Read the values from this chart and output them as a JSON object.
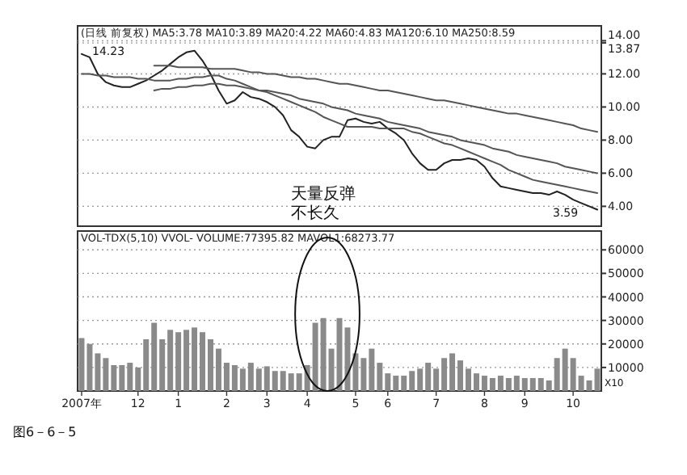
{
  "chart_data": [
    {
      "type": "line",
      "title": "(日线 前复权) MA5:3.78 MA10:3.89 MA20:4.22 MA60:4.83 MA120:6.10 MA250:8.59",
      "categories": [
        null,
        null,
        null,
        null,
        null,
        null,
        null,
        null,
        null,
        null,
        null,
        null,
        null,
        null,
        null,
        null,
        null,
        null,
        null,
        null,
        null,
        null,
        null,
        null,
        null,
        null,
        null,
        null,
        null,
        null,
        null,
        null,
        null,
        null,
        null,
        null,
        null,
        null,
        null,
        null,
        null,
        null,
        null,
        null,
        null,
        null,
        null,
        null,
        null,
        null,
        null,
        null,
        null,
        null,
        null,
        null,
        null,
        null,
        null,
        null,
        null,
        null,
        null,
        null,
        null
      ],
      "ylim": [
        2.8,
        14.9
      ],
      "yticks": [
        {
          "value": 4,
          "label": "4.00"
        },
        {
          "value": 6,
          "label": "6.00"
        },
        {
          "value": 8,
          "label": "8.00"
        },
        {
          "value": 10,
          "label": "10.00"
        },
        {
          "value": 12,
          "label": "12.00"
        },
        {
          "value": 13.87,
          "label": "13.87"
        },
        {
          "value": 14,
          "label": "14.00"
        }
      ],
      "grid": "y",
      "tick_labels": "y",
      "series": [
        {
          "color": "#222222",
          "values": [
            13.2,
            13.0,
            12.0,
            11.5,
            11.3,
            11.2,
            11.2,
            11.4,
            11.6,
            11.9,
            12.2,
            12.6,
            13.0,
            13.3,
            13.4,
            12.8,
            12.0,
            11.0,
            10.2,
            10.4,
            10.9,
            10.6,
            10.5,
            10.3,
            10.0,
            9.5,
            8.6,
            8.2,
            7.6,
            7.5,
            8.0,
            8.2,
            8.2,
            9.2,
            9.3,
            9.1,
            9.0,
            9.1,
            8.7,
            8.4,
            8.0,
            7.2,
            6.6,
            6.2,
            6.2,
            6.6,
            6.8,
            6.8,
            6.9,
            6.8,
            6.4,
            5.7,
            5.2,
            5.1,
            5.0,
            4.9,
            4.8,
            4.8,
            4.7,
            4.9,
            4.7,
            4.4,
            4.2,
            4.0,
            3.8
          ]
        },
        {
          "color": "#555555",
          "values": [
            12.0,
            12.0,
            11.9,
            11.9,
            11.8,
            11.8,
            11.8,
            11.7,
            11.7,
            11.6,
            11.6,
            11.6,
            11.7,
            11.7,
            11.8,
            11.8,
            11.9,
            11.9,
            11.7,
            11.6,
            11.4,
            11.2,
            11.0,
            10.9,
            10.7,
            10.5,
            10.3,
            10.1,
            9.9,
            9.7,
            9.4,
            9.2,
            9.0,
            8.8,
            8.8,
            8.8,
            8.8,
            8.7,
            8.7,
            8.7,
            8.7,
            8.5,
            8.4,
            8.2,
            8.0,
            7.8,
            7.7,
            7.5,
            7.3,
            7.1,
            6.9,
            6.7,
            6.5,
            6.2,
            6.0,
            5.8,
            5.6,
            5.5,
            5.4,
            5.3,
            5.2,
            5.1,
            5.0,
            4.9,
            4.8
          ]
        },
        {
          "color": "#555555",
          "values": [
            null,
            null,
            null,
            null,
            null,
            null,
            null,
            null,
            null,
            11.0,
            11.1,
            11.1,
            11.2,
            11.2,
            11.3,
            11.3,
            11.4,
            11.4,
            11.3,
            11.3,
            11.2,
            11.1,
            11.0,
            11.0,
            10.9,
            10.8,
            10.7,
            10.5,
            10.4,
            10.3,
            10.2,
            10.0,
            9.9,
            9.8,
            9.6,
            9.5,
            9.4,
            9.3,
            9.1,
            9.0,
            8.9,
            8.8,
            8.7,
            8.5,
            8.4,
            8.3,
            8.2,
            8.0,
            7.9,
            7.8,
            7.7,
            7.5,
            7.4,
            7.3,
            7.1,
            7.0,
            6.9,
            6.8,
            6.7,
            6.6,
            6.4,
            6.3,
            6.2,
            6.1,
            6.0
          ]
        },
        {
          "color": "#555555",
          "values": [
            null,
            null,
            null,
            null,
            null,
            null,
            null,
            null,
            null,
            12.5,
            12.5,
            12.5,
            12.4,
            12.4,
            12.4,
            12.4,
            12.3,
            12.3,
            12.3,
            12.3,
            12.2,
            12.1,
            12.1,
            12.0,
            12.0,
            11.9,
            11.8,
            11.8,
            11.7,
            11.7,
            11.6,
            11.5,
            11.4,
            11.4,
            11.3,
            11.2,
            11.1,
            11.0,
            11.0,
            10.9,
            10.8,
            10.7,
            10.6,
            10.5,
            10.4,
            10.4,
            10.3,
            10.2,
            10.1,
            10.0,
            9.9,
            9.8,
            9.7,
            9.6,
            9.6,
            9.5,
            9.4,
            9.3,
            9.2,
            9.1,
            9.0,
            8.9,
            8.7,
            8.6,
            8.5
          ]
        }
      ],
      "annotations": [
        "14.23",
        "3.59",
        "天量反弹",
        "不长久"
      ]
    },
    {
      "type": "bar",
      "title": "VOL-TDX(5,10) VVOL- VOLUME:77395.82 MAVOL1:68273.77",
      "categories": [
        "2007年",
        null,
        null,
        null,
        null,
        null,
        null,
        "12",
        null,
        null,
        null,
        null,
        "1",
        null,
        null,
        null,
        null,
        null,
        "2",
        null,
        null,
        null,
        null,
        "3",
        null,
        null,
        null,
        null,
        "4",
        null,
        null,
        null,
        null,
        null,
        "5",
        null,
        null,
        null,
        "6",
        null,
        null,
        null,
        null,
        null,
        "7",
        null,
        null,
        null,
        null,
        null,
        "8",
        null,
        null,
        null,
        null,
        "9",
        null,
        null,
        null,
        null,
        null,
        "10",
        null,
        null,
        null
      ],
      "values": [
        22500,
        20000,
        16000,
        14000,
        11000,
        11000,
        12000,
        10000,
        22000,
        29000,
        22000,
        26000,
        25000,
        26000,
        27000,
        25000,
        22000,
        18000,
        12000,
        11000,
        9500,
        12000,
        9500,
        10500,
        8500,
        8500,
        7500,
        7500,
        11000,
        29000,
        31000,
        18000,
        31000,
        27000,
        16000,
        14000,
        18000,
        12000,
        7500,
        6500,
        6500,
        8500,
        9500,
        12000,
        9500,
        14000,
        16000,
        13000,
        9500,
        7500,
        6500,
        5500,
        6500,
        5500,
        6500,
        5500,
        5500,
        5500,
        4500,
        14000,
        18000,
        14000,
        6500,
        4500,
        9500
      ],
      "color": "#8a8a8a",
      "ylim": [
        0,
        68000
      ],
      "yticks": [
        10000,
        20000,
        30000,
        40000,
        50000,
        60000
      ],
      "grid": "y",
      "annotations": [
        "X10",
        "图6－6－5"
      ]
    }
  ]
}
